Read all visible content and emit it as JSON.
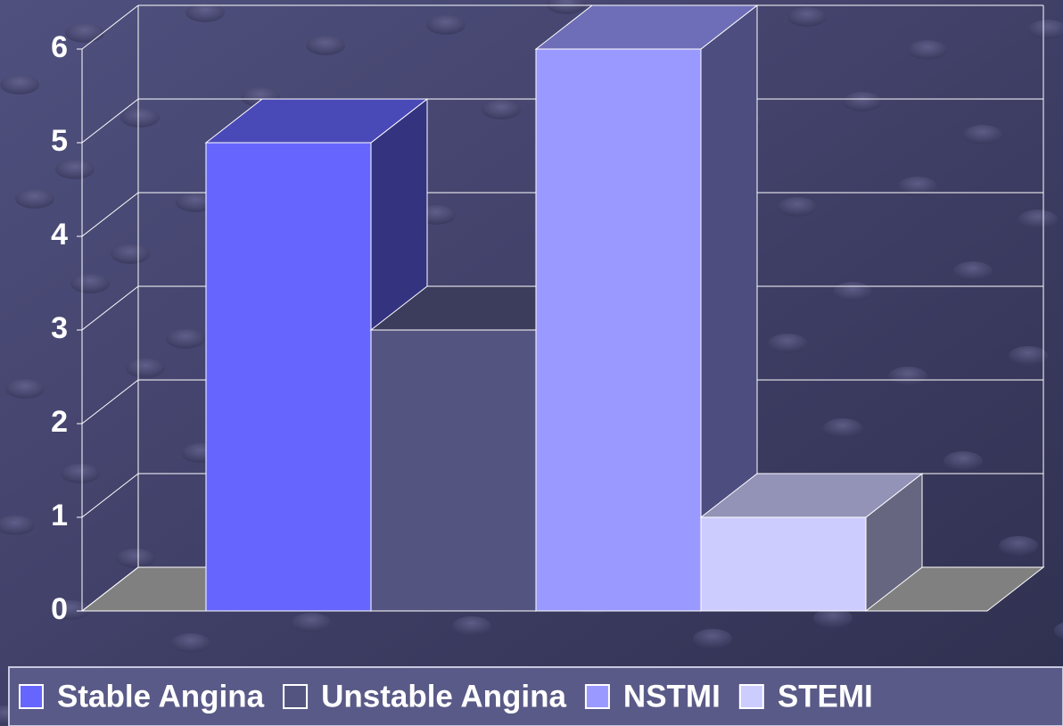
{
  "chart_data": {
    "type": "bar",
    "series": [
      {
        "name": "Stable Angina",
        "color": "#6666ff",
        "values": [
          5
        ]
      },
      {
        "name": "Unstable Angina",
        "color": "#545480",
        "values": [
          3
        ]
      },
      {
        "name": "NSTMI",
        "color": "#9999ff",
        "values": [
          6
        ]
      },
      {
        "name": "STEMI",
        "color": "#ccccff",
        "values": [
          1
        ]
      }
    ],
    "ylim": [
      0,
      6
    ],
    "yticks": [
      0,
      1,
      2,
      3,
      4,
      5,
      6
    ],
    "grid": true,
    "legend": "bottom"
  }
}
